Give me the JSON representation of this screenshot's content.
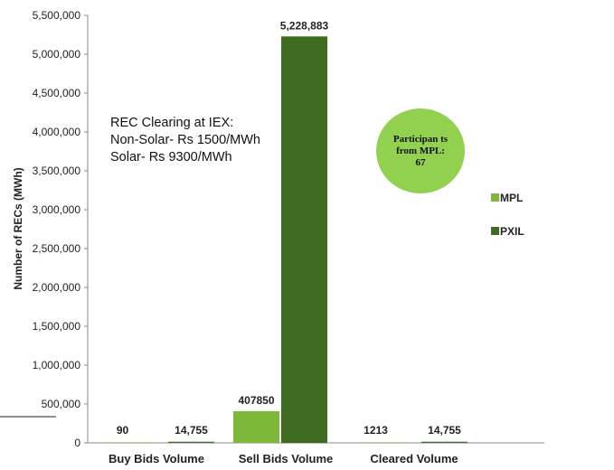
{
  "chart_data": {
    "type": "bar",
    "categories": [
      "Buy Bids Volume",
      "Sell Bids Volume",
      "Cleared Volume"
    ],
    "series": [
      {
        "name": "MPL",
        "color": "#7db83a",
        "values": [
          90,
          407850,
          1213
        ],
        "labels": [
          "90",
          "407850",
          "1213"
        ]
      },
      {
        "name": "PXIL",
        "color": "#3f6b21",
        "values": [
          14755,
          5228883,
          14755
        ],
        "labels": [
          "14,755",
          "5,228,883",
          "14,755"
        ]
      }
    ],
    "ylabel": "Number of RECs (MWh)",
    "ylim": [
      0,
      5500000
    ],
    "yticks": [
      "0",
      "500,000",
      "1,000,000",
      "1,500,000",
      "2,000,000",
      "2,500,000",
      "3,000,000",
      "3,500,000",
      "4,000,000",
      "4,500,000",
      "5,000,000",
      "5,500,000"
    ],
    "grid": false,
    "legend_position": "right"
  },
  "annotation": {
    "lines": [
      "REC Clearing at IEX:",
      "Non-Solar- Rs 1500/MWh",
      "Solar- Rs 9300/MWh"
    ]
  },
  "bubble": {
    "text": "Participan ts from MPL: 67",
    "color": "#92d050"
  }
}
